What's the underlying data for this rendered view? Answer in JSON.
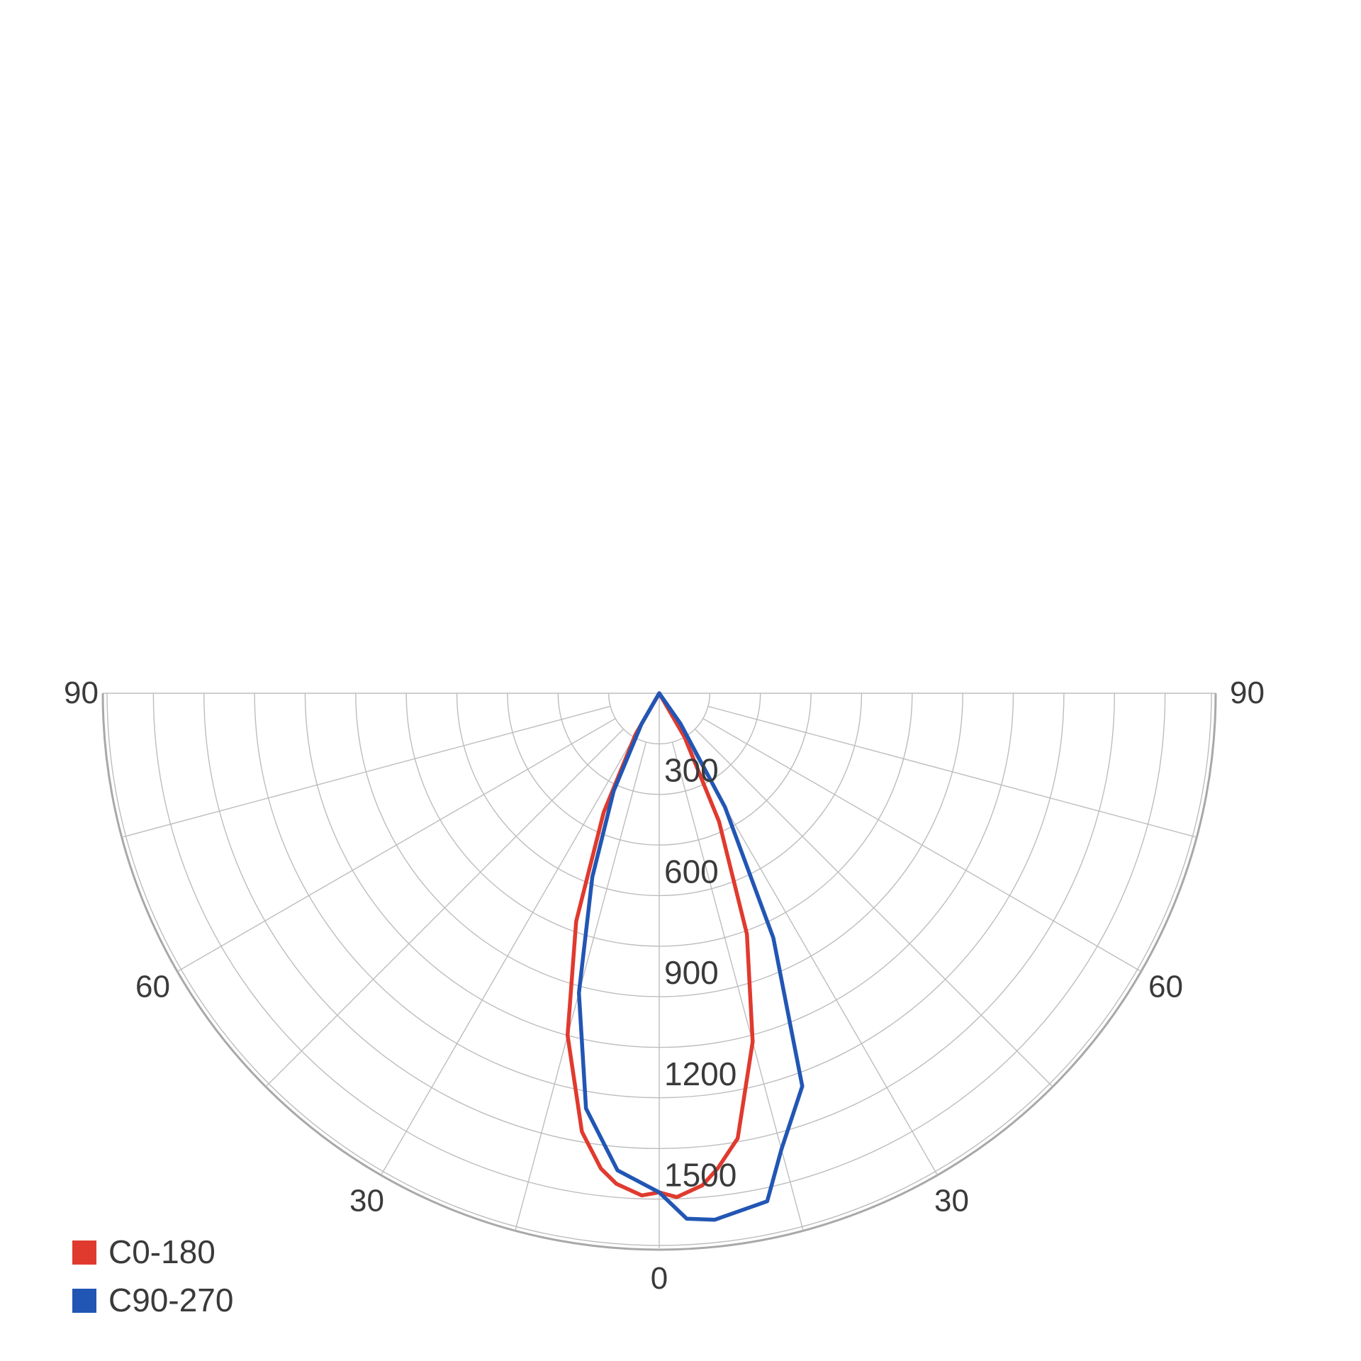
{
  "chart_data": {
    "type": "polar",
    "title": "",
    "r_ticks": [
      300,
      600,
      900,
      1200,
      1500
    ],
    "r_tick_labels": [
      "300",
      "600",
      "900",
      "1200",
      "1500"
    ],
    "r_max": 1650,
    "r_minor_step": 150,
    "angle_range": [
      -90,
      90
    ],
    "angle_spoke_step": 15,
    "angle_tick_labels": [
      {
        "angle": -90,
        "text": "90"
      },
      {
        "angle": -60,
        "text": "60"
      },
      {
        "angle": -30,
        "text": "30"
      },
      {
        "angle": 0,
        "text": "0"
      },
      {
        "angle": 30,
        "text": "30"
      },
      {
        "angle": 60,
        "text": "60"
      },
      {
        "angle": 90,
        "text": "90"
      }
    ],
    "grid": true,
    "legend_position": "bottom-left",
    "series": [
      {
        "name": "C0-180",
        "color": "#e03a2f",
        "points": [
          {
            "angle": -30,
            "r": 140
          },
          {
            "angle": -25,
            "r": 390
          },
          {
            "angle": -20,
            "r": 720
          },
          {
            "angle": -15,
            "r": 1050
          },
          {
            "angle": -10,
            "r": 1320
          },
          {
            "angle": -7,
            "r": 1420
          },
          {
            "angle": -5,
            "r": 1460
          },
          {
            "angle": -2,
            "r": 1490
          },
          {
            "angle": 0,
            "r": 1480
          },
          {
            "angle": 2,
            "r": 1495
          },
          {
            "angle": 5,
            "r": 1465
          },
          {
            "angle": 7,
            "r": 1420
          },
          {
            "angle": 10,
            "r": 1340
          },
          {
            "angle": 15,
            "r": 1070
          },
          {
            "angle": 20,
            "r": 760
          },
          {
            "angle": 25,
            "r": 420
          },
          {
            "angle": 30,
            "r": 150
          }
        ]
      },
      {
        "name": "C90-270",
        "color": "#2256b4",
        "points": [
          {
            "angle": -30,
            "r": 105
          },
          {
            "angle": -25,
            "r": 320
          },
          {
            "angle": -20,
            "r": 580
          },
          {
            "angle": -15,
            "r": 920
          },
          {
            "angle": -10,
            "r": 1250
          },
          {
            "angle": -5,
            "r": 1420
          },
          {
            "angle": 0,
            "r": 1480
          },
          {
            "angle": 3,
            "r": 1560
          },
          {
            "angle": 6,
            "r": 1570
          },
          {
            "angle": 12,
            "r": 1540
          },
          {
            "angle": 15,
            "r": 1400
          },
          {
            "angle": 20,
            "r": 1240
          },
          {
            "angle": 25,
            "r": 800
          },
          {
            "angle": 30,
            "r": 390
          },
          {
            "angle": 35,
            "r": 110
          }
        ]
      }
    ]
  }
}
